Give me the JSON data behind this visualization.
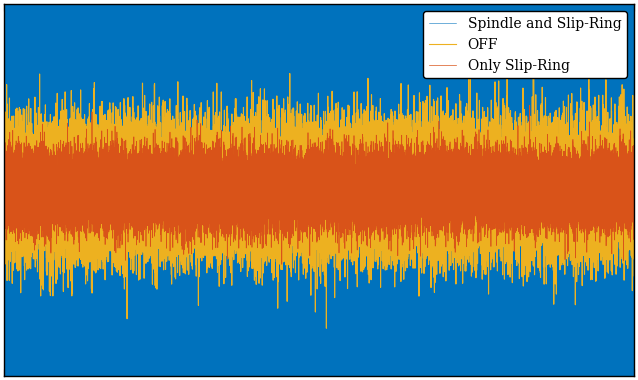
{
  "title": "",
  "legend_entries": [
    "Spindle and Slip-Ring",
    "Only Slip-Ring",
    "OFF"
  ],
  "line_colors": [
    "#0072BD",
    "#D95319",
    "#EDB120"
  ],
  "n_points": 50000,
  "blue_amplitude": 0.45,
  "orange_amplitude": 0.1,
  "red_amplitude": 0.06,
  "ylim": [
    -0.6,
    0.6
  ],
  "xlim": [
    0,
    1
  ],
  "xtick_count": 5,
  "ytick_positions": [
    -0.5,
    0.0,
    0.5
  ],
  "legend_loc": "upper right",
  "legend_fontsize": 10,
  "tick_fontsize": 9,
  "background_color": "#FFFFFF",
  "seed": 42,
  "figure_width": 6.38,
  "figure_height": 3.8,
  "dpi": 100
}
